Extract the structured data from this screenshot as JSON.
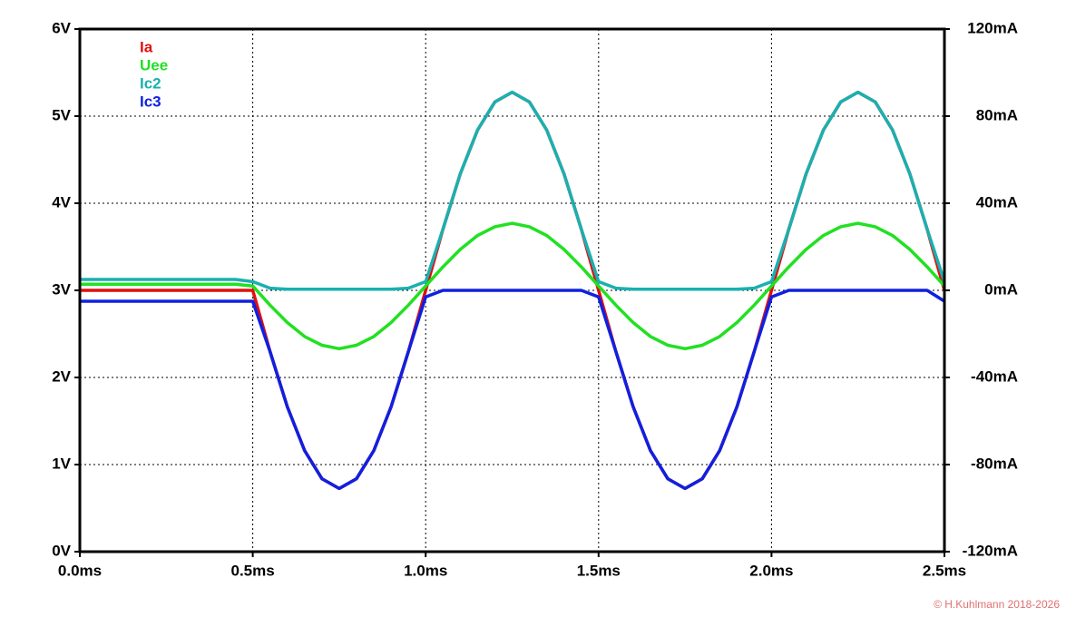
{
  "chart_data": {
    "type": "line",
    "x": [
      0,
      0.05,
      0.1,
      0.15,
      0.2,
      0.25,
      0.3,
      0.35,
      0.4,
      0.45,
      0.5,
      0.55,
      0.6,
      0.65,
      0.7,
      0.75,
      0.8,
      0.85,
      0.9,
      0.95,
      1.0,
      1.05,
      1.1,
      1.15,
      1.2,
      1.25,
      1.3,
      1.35,
      1.4,
      1.45,
      1.5,
      1.55,
      1.6,
      1.65,
      1.7,
      1.75,
      1.8,
      1.85,
      1.9,
      1.95,
      2.0,
      2.05,
      2.1,
      2.15,
      2.2,
      2.25,
      2.3,
      2.35,
      2.4,
      2.45,
      2.5
    ],
    "xlim": [
      0,
      2.5
    ],
    "xticks": [
      {
        "value": 0,
        "label": "0.0ms"
      },
      {
        "value": 0.5,
        "label": "0.5ms"
      },
      {
        "value": 1.0,
        "label": "1.0ms"
      },
      {
        "value": 1.5,
        "label": "1.5ms"
      },
      {
        "value": 2.0,
        "label": "2.0ms"
      },
      {
        "value": 2.5,
        "label": "2.5ms"
      }
    ],
    "ylim": [
      0,
      6
    ],
    "yticks": [
      {
        "value": 0,
        "label": "0V"
      },
      {
        "value": 1,
        "label": "1V"
      },
      {
        "value": 2,
        "label": "2V"
      },
      {
        "value": 3,
        "label": "3V"
      },
      {
        "value": 4,
        "label": "4V"
      },
      {
        "value": 5,
        "label": "5V"
      },
      {
        "value": 6,
        "label": "6V"
      }
    ],
    "y2lim": [
      -120,
      120
    ],
    "y2ticks": [
      {
        "value": -120,
        "label": "-120mA"
      },
      {
        "value": -80,
        "label": "-80mA"
      },
      {
        "value": -40,
        "label": "-40mA"
      },
      {
        "value": 0,
        "label": "0mA"
      },
      {
        "value": 40,
        "label": "40mA"
      },
      {
        "value": 80,
        "label": "80mA"
      },
      {
        "value": 120,
        "label": "120mA"
      }
    ],
    "grid": true,
    "legend": "top-left",
    "series": [
      {
        "name": "Ia",
        "color": "#e01010",
        "axis": "y2",
        "values": [
          0,
          0,
          0,
          0,
          0,
          0,
          0,
          0,
          0,
          0,
          0,
          -28.1,
          -53.5,
          -73.6,
          -86.5,
          -91,
          -86.5,
          -73.6,
          -53.5,
          -28.1,
          0,
          28.1,
          53.5,
          73.6,
          86.5,
          91,
          86.5,
          73.6,
          53.5,
          28.1,
          0,
          -28.1,
          -53.5,
          -73.6,
          -86.5,
          -91,
          -86.5,
          -73.6,
          -53.5,
          -28.1,
          0,
          28.1,
          53.5,
          73.6,
          86.5,
          91,
          86.5,
          73.6,
          53.5,
          28.1,
          0
        ]
      },
      {
        "name": "Uee",
        "color": "#22e022",
        "values": [
          3.07,
          3.07,
          3.07,
          3.07,
          3.07,
          3.07,
          3.07,
          3.07,
          3.07,
          3.07,
          3.05,
          2.83,
          2.63,
          2.47,
          2.37,
          2.33,
          2.37,
          2.47,
          2.63,
          2.83,
          3.05,
          3.27,
          3.47,
          3.63,
          3.73,
          3.77,
          3.73,
          3.63,
          3.47,
          3.27,
          3.05,
          2.83,
          2.63,
          2.47,
          2.37,
          2.33,
          2.37,
          2.47,
          2.63,
          2.83,
          3.05,
          3.27,
          3.47,
          3.63,
          3.73,
          3.77,
          3.73,
          3.63,
          3.47,
          3.27,
          3.05
        ]
      },
      {
        "name": "Ic2",
        "color": "#1ab0b0",
        "axis": "y2",
        "values": [
          5,
          5,
          5,
          5,
          5,
          5,
          5,
          5,
          5,
          5,
          4,
          1,
          0.5,
          0.5,
          0.5,
          0.5,
          0.5,
          0.5,
          0.5,
          1,
          4,
          28.1,
          53.5,
          73.6,
          86.5,
          91,
          86.5,
          73.6,
          53.5,
          28.1,
          4,
          1,
          0.5,
          0.5,
          0.5,
          0.5,
          0.5,
          0.5,
          0.5,
          1,
          4,
          28.1,
          53.5,
          73.6,
          86.5,
          91,
          86.5,
          73.6,
          53.5,
          28.1,
          4
        ]
      },
      {
        "name": "Ic3",
        "color": "#1020e0",
        "axis": "y2",
        "values": [
          -5,
          -5,
          -5,
          -5,
          -5,
          -5,
          -5,
          -5,
          -5,
          -5,
          -5,
          -28.1,
          -53.5,
          -73.6,
          -86.5,
          -91,
          -86.5,
          -73.6,
          -53.5,
          -28.1,
          -3,
          0,
          0,
          0,
          0,
          0,
          0,
          0,
          0,
          0,
          -3,
          -28.1,
          -53.5,
          -73.6,
          -86.5,
          -91,
          -86.5,
          -73.6,
          -53.5,
          -28.1,
          -3,
          0,
          0,
          0,
          0,
          0,
          0,
          0,
          0,
          0,
          -5
        ]
      }
    ],
    "annotations": [
      "© H.Kuhlmann 2018-2026"
    ]
  }
}
